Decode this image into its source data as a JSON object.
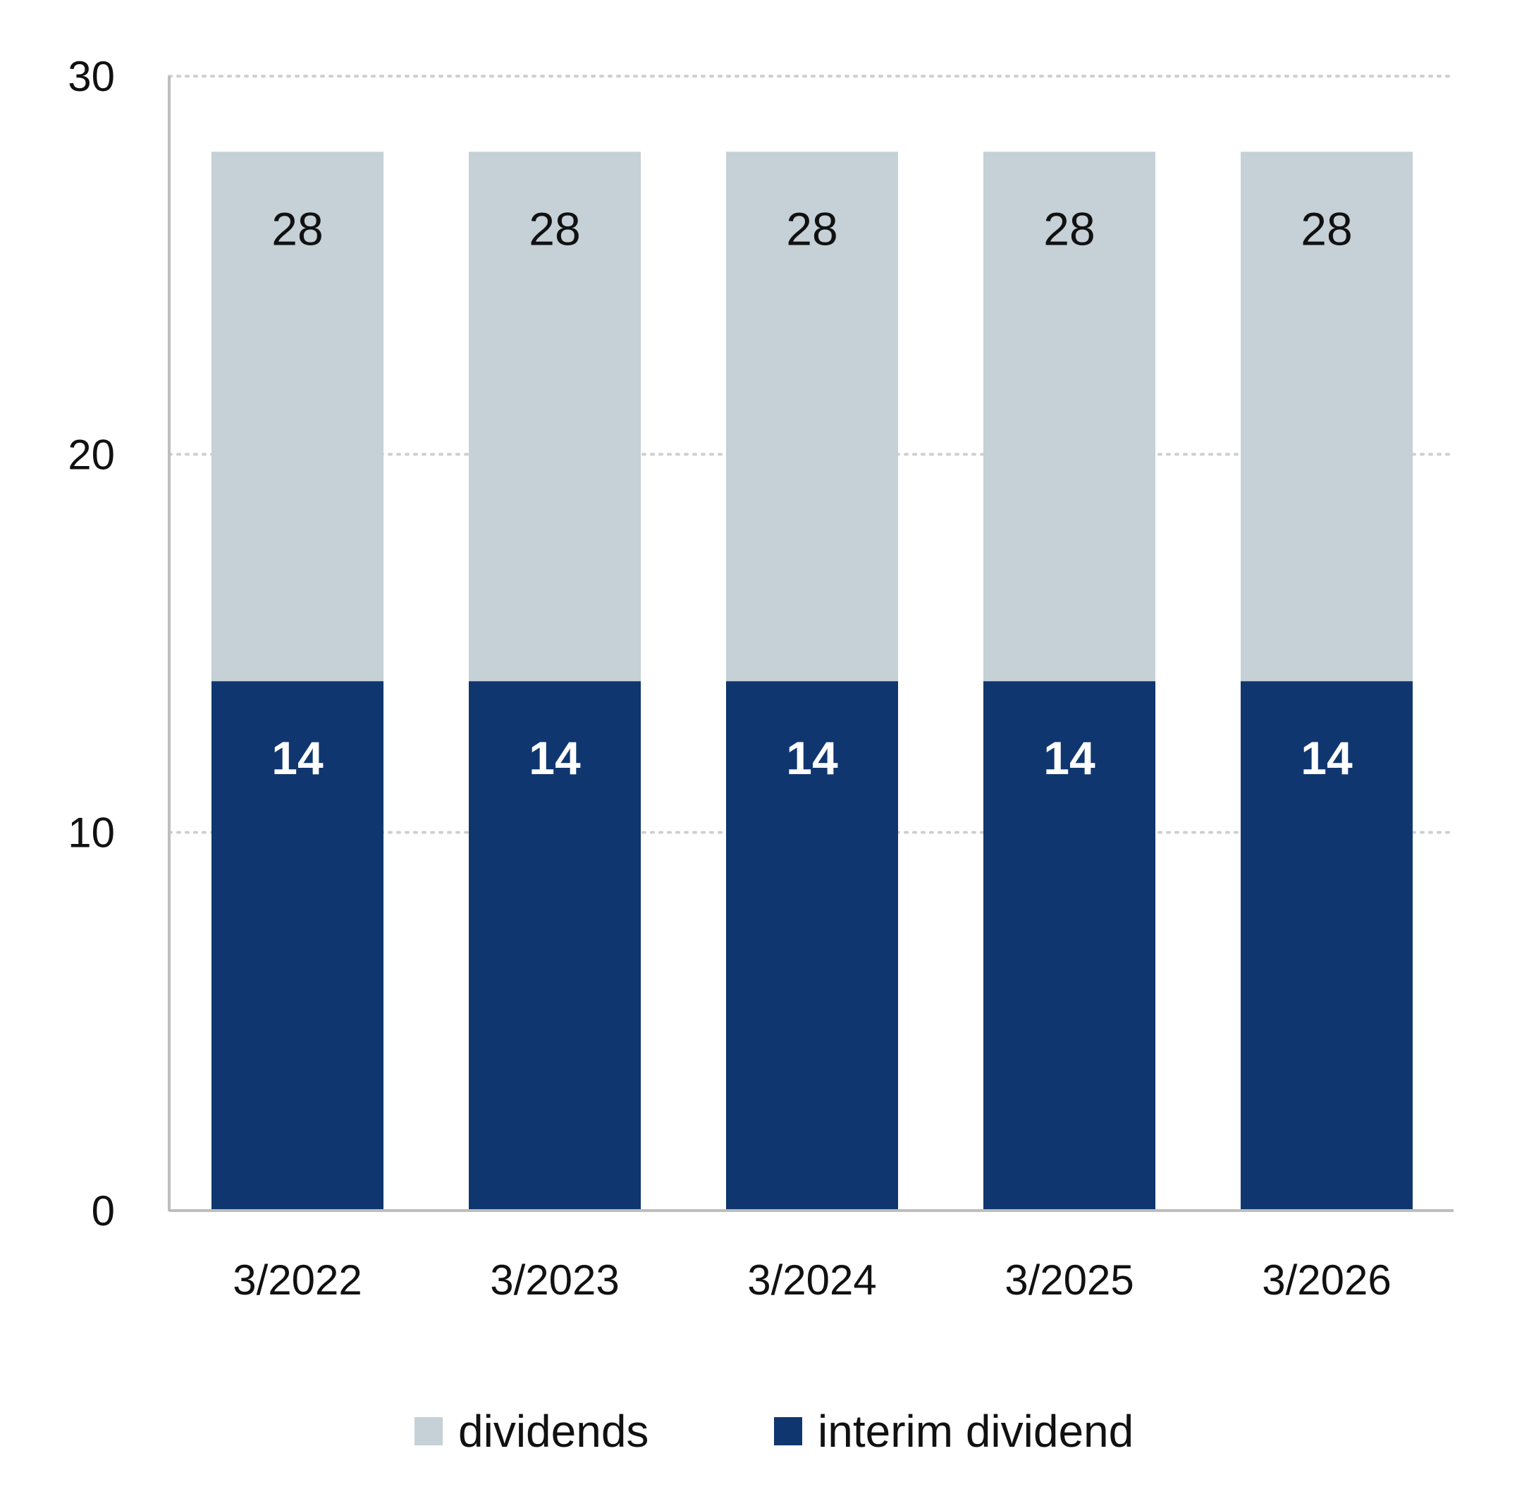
{
  "chart_data": {
    "type": "bar",
    "stacked": true,
    "categories": [
      "3/2022",
      "3/2023",
      "3/2024",
      "3/2025",
      "3/2026"
    ],
    "series": [
      {
        "name": "interim dividend",
        "values": [
          14,
          14,
          14,
          14,
          14
        ],
        "color": "#10366f"
      },
      {
        "name": "dividends",
        "values": [
          14,
          14,
          14,
          14,
          14
        ],
        "color": "#c5d0d7"
      }
    ],
    "data_labels": {
      "interim dividend": [
        "14",
        "14",
        "14",
        "14",
        "14"
      ],
      "dividends": [
        "28",
        "28",
        "28",
        "28",
        "28"
      ]
    },
    "ylim": [
      0,
      30
    ],
    "yticks": [
      0,
      10,
      20,
      30
    ],
    "grid": "dotted horizontal",
    "legend": {
      "placement": "bottom",
      "order": [
        "dividends",
        "interim dividend"
      ]
    }
  }
}
